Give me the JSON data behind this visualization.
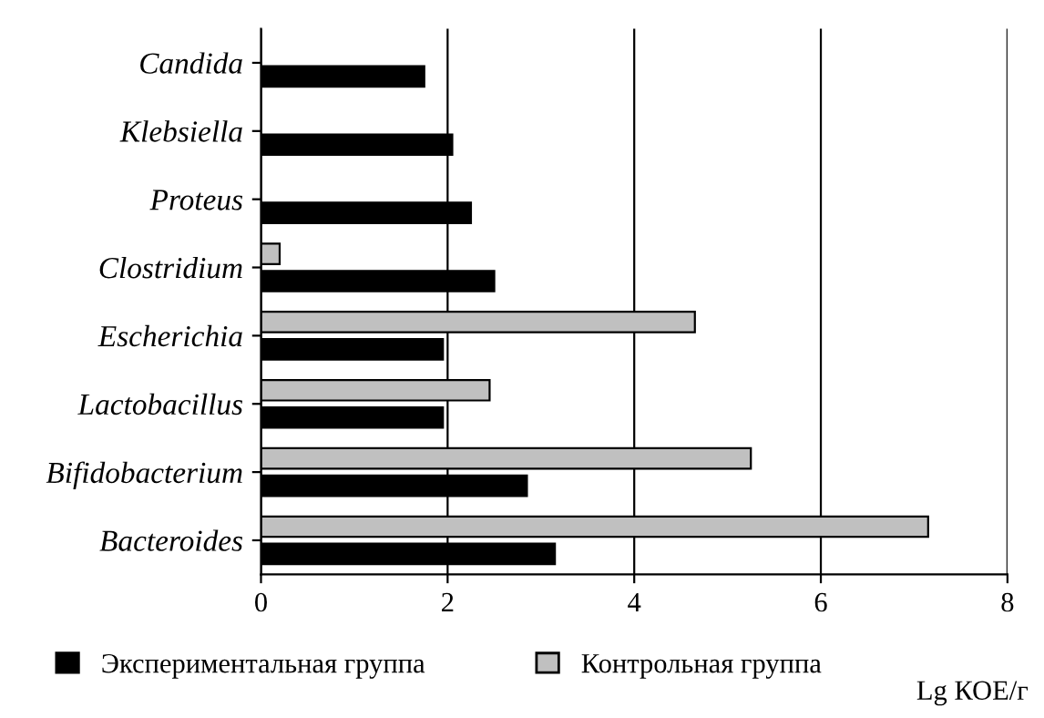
{
  "chart_data": {
    "type": "bar",
    "orientation": "horizontal",
    "categories": [
      "Candida",
      "Klebsiella",
      "Proteus",
      "Clostridium",
      "Escherichia",
      "Lactobacillus",
      "Bifidobacterium",
      "Bacteroides"
    ],
    "series": [
      {
        "name": "Экспериментальная группа",
        "color": "#000000",
        "values": [
          1.75,
          2.05,
          2.25,
          2.5,
          1.95,
          1.95,
          2.85,
          3.15
        ]
      },
      {
        "name": "Контрольная группа",
        "color": "#c0c0c0",
        "values": [
          null,
          null,
          null,
          0.2,
          4.65,
          2.45,
          5.25,
          7.15
        ]
      }
    ],
    "xlim": [
      0,
      8
    ],
    "xticks": [
      0,
      2,
      4,
      6,
      8
    ],
    "xlabel": "Lg КОЕ/г",
    "grid": "x",
    "legend": "bottom"
  }
}
